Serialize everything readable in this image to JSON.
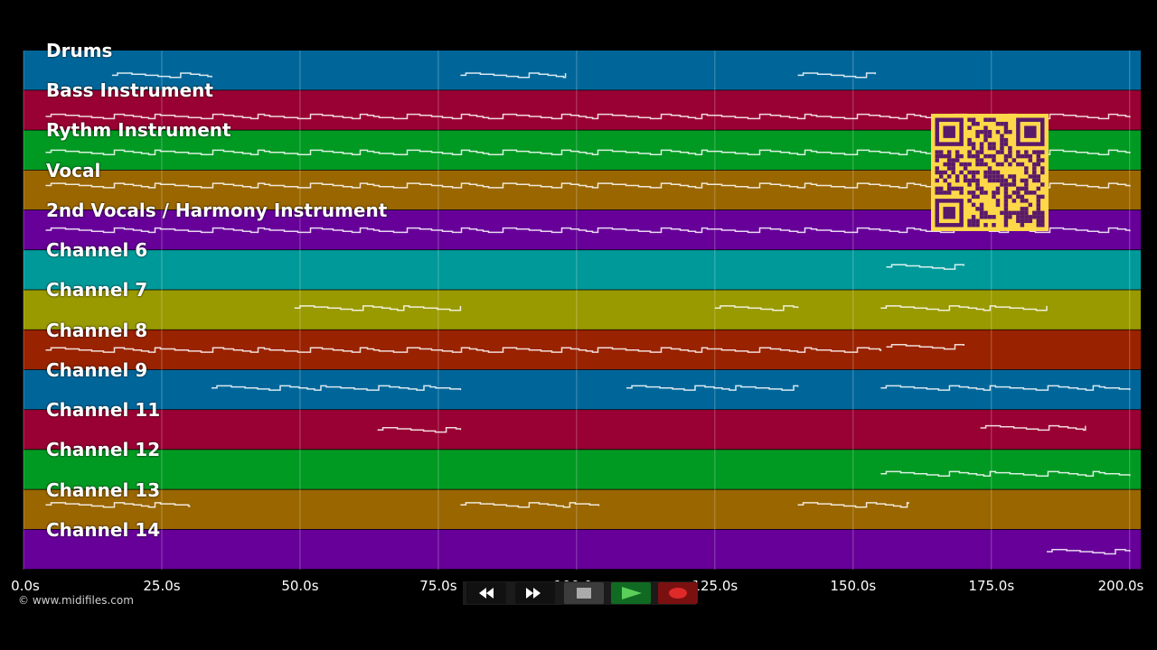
{
  "tracks": [
    {
      "name": "Drums",
      "color": "#006699"
    },
    {
      "name": "Bass Instrument",
      "color": "#990033"
    },
    {
      "name": "Rythm Instrument",
      "color": "#009922"
    },
    {
      "name": "Vocal",
      "color": "#996600"
    },
    {
      "name": "2nd Vocals / Harmony Instrument",
      "color": "#660099"
    },
    {
      "name": "Channel 6",
      "color": "#009999"
    },
    {
      "name": "Channel 7",
      "color": "#999900"
    },
    {
      "name": "Channel 8",
      "color": "#992200"
    },
    {
      "name": "Channel 9",
      "color": "#006699"
    },
    {
      "name": "Channel 11",
      "color": "#990033"
    },
    {
      "name": "Channel 12",
      "color": "#009922"
    },
    {
      "name": "Channel 13",
      "color": "#996600"
    },
    {
      "name": "Channel 14",
      "color": "#660099"
    }
  ],
  "timeline": {
    "start_seconds": 0,
    "end_seconds": 202,
    "ticks": [
      "0.0s",
      "25.0s",
      "50.0s",
      "75.0s",
      "100.0s",
      "125.0s",
      "150.0s",
      "175.0s",
      "200.0s"
    ],
    "tick_values": [
      0,
      25,
      50,
      75,
      100,
      125,
      150,
      175,
      200
    ]
  },
  "copyright": "© www.midifiles.com",
  "transport": {
    "buttons": [
      {
        "name": "rewind",
        "icon": "rewind-icon"
      },
      {
        "name": "fast-forward",
        "icon": "fast-forward-icon"
      },
      {
        "name": "stop",
        "icon": "stop-icon"
      },
      {
        "name": "play",
        "icon": "play-icon"
      },
      {
        "name": "record",
        "icon": "record-icon"
      }
    ]
  },
  "qr_code": {
    "fg": "#5a1a6a",
    "bg": "#ffd84a"
  }
}
